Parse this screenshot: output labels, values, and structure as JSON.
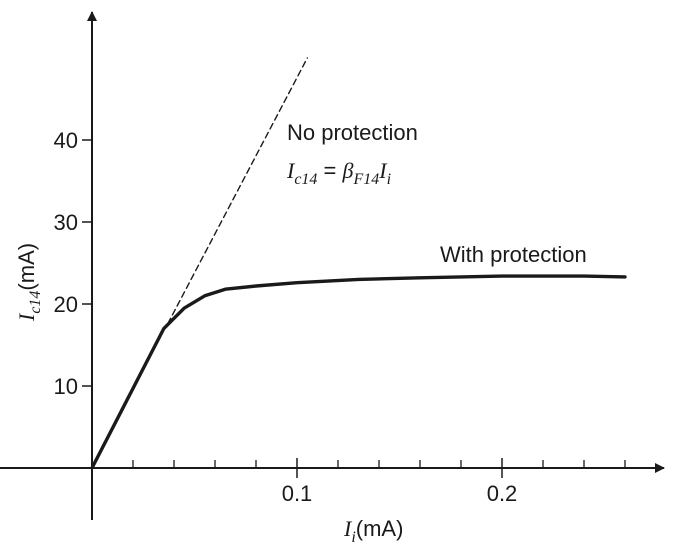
{
  "chart_data": {
    "type": "line",
    "xlabel": {
      "var": "I",
      "sub": "i",
      "unit": "(mA)"
    },
    "ylabel": {
      "var": "I",
      "sub": "c14",
      "unit": "(mA)"
    },
    "xlim": [
      0,
      0.27
    ],
    "ylim": [
      0,
      52
    ],
    "x_ticks": [
      0.1,
      0.2
    ],
    "x_tick_labels": [
      "0.1",
      "0.2"
    ],
    "x_minor_step": 0.02,
    "y_ticks": [
      10,
      20,
      30,
      40
    ],
    "y_tick_labels": [
      "10",
      "20",
      "30",
      "40"
    ],
    "grid": false,
    "series": [
      {
        "name": "No protection",
        "style": "dashed",
        "x": [
          0.037,
          0.105
        ],
        "y": [
          17.6,
          50.0
        ]
      },
      {
        "name": "With protection",
        "style": "solid",
        "x": [
          0,
          0.035,
          0.045,
          0.055,
          0.065,
          0.08,
          0.1,
          0.13,
          0.16,
          0.2,
          0.24,
          0.26
        ],
        "y": [
          0,
          17.0,
          19.5,
          21.0,
          21.8,
          22.2,
          22.6,
          23.0,
          23.2,
          23.4,
          23.4,
          23.3
        ]
      }
    ],
    "annotations": [
      {
        "text": "No protection",
        "target_series": 0
      },
      {
        "equation": {
          "lhs_var": "I",
          "lhs_sub": "c14",
          "eq": " = ",
          "beta": "β",
          "beta_sub": "F14",
          "rhs_var": "I",
          "rhs_sub": "i"
        }
      },
      {
        "text": "With protection",
        "target_series": 1
      }
    ]
  }
}
